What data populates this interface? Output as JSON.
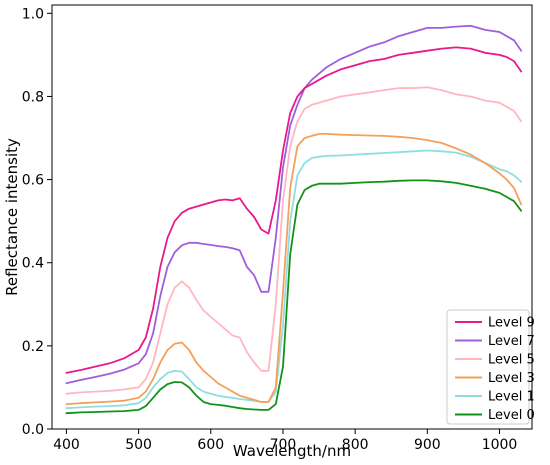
{
  "chart_data": {
    "type": "line",
    "title": "",
    "xlabel": "Wavelength/nm",
    "ylabel": "Reflectance intensity",
    "xlim": [
      380,
      1045
    ],
    "ylim": [
      0.0,
      1.02
    ],
    "xticks": [
      400,
      500,
      600,
      700,
      800,
      900,
      1000
    ],
    "xtick_labels": [
      "400",
      "500",
      "600",
      "700",
      "800",
      "900",
      "1000"
    ],
    "yticks": [
      0.0,
      0.2,
      0.4,
      0.6,
      0.8,
      1.0
    ],
    "ytick_labels": [
      "0.0",
      "0.2",
      "0.4",
      "0.6",
      "0.8",
      "1.0"
    ],
    "grid": false,
    "legend_position": "bottom-right",
    "x": [
      400,
      420,
      440,
      460,
      480,
      500,
      510,
      520,
      530,
      540,
      550,
      560,
      570,
      580,
      590,
      600,
      610,
      620,
      630,
      640,
      650,
      660,
      670,
      680,
      690,
      700,
      710,
      720,
      730,
      740,
      750,
      760,
      780,
      800,
      820,
      840,
      860,
      880,
      900,
      920,
      940,
      960,
      980,
      1000,
      1010,
      1020,
      1030
    ],
    "series": [
      {
        "name": "Level 9",
        "color": "#e8198b",
        "values": [
          0.135,
          0.142,
          0.15,
          0.158,
          0.17,
          0.19,
          0.22,
          0.29,
          0.39,
          0.46,
          0.5,
          0.52,
          0.53,
          0.535,
          0.54,
          0.545,
          0.55,
          0.552,
          0.55,
          0.555,
          0.53,
          0.51,
          0.48,
          0.47,
          0.55,
          0.67,
          0.76,
          0.8,
          0.82,
          0.83,
          0.84,
          0.85,
          0.865,
          0.875,
          0.885,
          0.89,
          0.9,
          0.905,
          0.91,
          0.915,
          0.918,
          0.915,
          0.905,
          0.9,
          0.895,
          0.885,
          0.86
        ]
      },
      {
        "name": "Level 7",
        "color": "#9f5fdb",
        "values": [
          0.11,
          0.118,
          0.125,
          0.133,
          0.143,
          0.158,
          0.18,
          0.23,
          0.32,
          0.39,
          0.425,
          0.442,
          0.448,
          0.448,
          0.445,
          0.443,
          0.44,
          0.438,
          0.435,
          0.43,
          0.39,
          0.37,
          0.33,
          0.33,
          0.46,
          0.63,
          0.73,
          0.78,
          0.82,
          0.84,
          0.855,
          0.87,
          0.89,
          0.905,
          0.92,
          0.93,
          0.945,
          0.955,
          0.965,
          0.965,
          0.968,
          0.97,
          0.96,
          0.955,
          0.945,
          0.935,
          0.91
        ]
      },
      {
        "name": "Level 5",
        "color": "#ffb6c1",
        "values": [
          0.085,
          0.088,
          0.09,
          0.092,
          0.095,
          0.1,
          0.12,
          0.16,
          0.23,
          0.3,
          0.34,
          0.355,
          0.34,
          0.31,
          0.285,
          0.27,
          0.255,
          0.24,
          0.225,
          0.22,
          0.185,
          0.16,
          0.14,
          0.14,
          0.3,
          0.55,
          0.68,
          0.74,
          0.77,
          0.78,
          0.785,
          0.79,
          0.8,
          0.805,
          0.81,
          0.815,
          0.82,
          0.82,
          0.822,
          0.815,
          0.805,
          0.8,
          0.79,
          0.785,
          0.775,
          0.765,
          0.74
        ]
      },
      {
        "name": "Level 3",
        "color": "#f5a05a",
        "values": [
          0.06,
          0.062,
          0.064,
          0.066,
          0.068,
          0.075,
          0.09,
          0.12,
          0.16,
          0.19,
          0.205,
          0.208,
          0.19,
          0.16,
          0.14,
          0.125,
          0.11,
          0.1,
          0.09,
          0.08,
          0.075,
          0.07,
          0.065,
          0.065,
          0.1,
          0.33,
          0.58,
          0.68,
          0.7,
          0.705,
          0.71,
          0.71,
          0.708,
          0.707,
          0.706,
          0.705,
          0.703,
          0.7,
          0.695,
          0.688,
          0.675,
          0.66,
          0.64,
          0.615,
          0.6,
          0.58,
          0.54
        ]
      },
      {
        "name": "Level 1",
        "color": "#8fdde0",
        "values": [
          0.05,
          0.052,
          0.054,
          0.055,
          0.057,
          0.062,
          0.075,
          0.1,
          0.12,
          0.135,
          0.14,
          0.138,
          0.12,
          0.1,
          0.09,
          0.085,
          0.08,
          0.077,
          0.075,
          0.072,
          0.07,
          0.068,
          0.065,
          0.065,
          0.09,
          0.25,
          0.5,
          0.61,
          0.64,
          0.652,
          0.655,
          0.657,
          0.658,
          0.66,
          0.662,
          0.664,
          0.666,
          0.668,
          0.67,
          0.668,
          0.665,
          0.655,
          0.64,
          0.625,
          0.62,
          0.61,
          0.595
        ]
      },
      {
        "name": "Level 0",
        "color": "#13921a",
        "values": [
          0.038,
          0.04,
          0.041,
          0.042,
          0.043,
          0.046,
          0.055,
          0.075,
          0.095,
          0.108,
          0.113,
          0.112,
          0.1,
          0.08,
          0.065,
          0.06,
          0.058,
          0.056,
          0.053,
          0.05,
          0.048,
          0.047,
          0.046,
          0.046,
          0.06,
          0.15,
          0.42,
          0.54,
          0.575,
          0.585,
          0.59,
          0.59,
          0.59,
          0.592,
          0.594,
          0.595,
          0.597,
          0.598,
          0.598,
          0.596,
          0.592,
          0.585,
          0.578,
          0.568,
          0.558,
          0.548,
          0.525
        ]
      }
    ]
  }
}
